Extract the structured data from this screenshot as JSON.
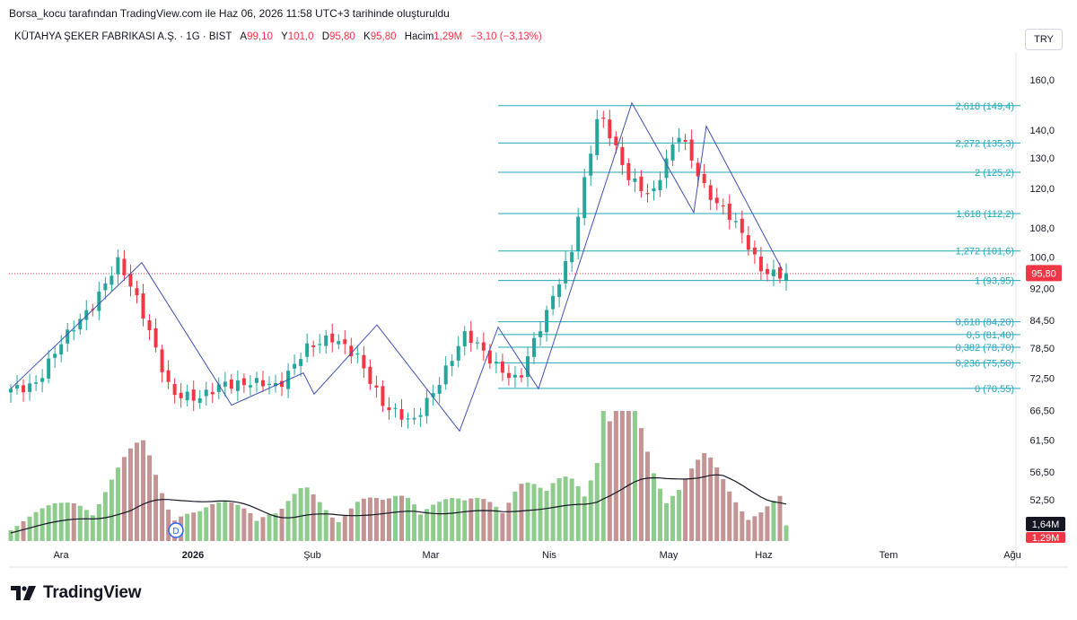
{
  "header": {
    "attribution": "Borsa_kocu tarafından TradingView.com ile Haz 06, 2026 11:58 UTC+3 tarihinde oluşturuldu"
  },
  "legend": {
    "symbol": "KÜTAHYA ŞEKER FABRIKASI A.Ş. · 1G · BIST",
    "open_label": "A",
    "open": "99,10",
    "high_label": "Y",
    "high": "101,0",
    "low_label": "D",
    "low": "95,80",
    "close_label": "K",
    "close": "95,80",
    "volume_label": "Hacim",
    "volume": "1,29M",
    "change": "−3,10 (−3,13%)"
  },
  "currency": "TRY",
  "brand": {
    "name": "TradingView"
  },
  "colors": {
    "up": "#26a69a",
    "down": "#f23645",
    "fib": "#22a7b8",
    "zigzag": "#3f51b5",
    "vol_up": "#8ecc8e",
    "vol_down": "#c49494"
  },
  "chart_data": {
    "type": "candlestick",
    "price_axis": {
      "scale": "log",
      "ticks": [
        "160,0",
        "140,0",
        "130,0",
        "120,0",
        "108,0",
        "100,0",
        "92,00",
        "84,50",
        "78,50",
        "72,50",
        "66,50",
        "61,50",
        "56,50",
        "52,50"
      ],
      "tick_values": [
        160,
        140,
        130,
        120,
        108,
        100,
        92,
        84.5,
        78.5,
        72.5,
        66.5,
        61.5,
        56.5,
        52.5
      ]
    },
    "time_axis": {
      "labels": [
        "Ara",
        "2026",
        "Şub",
        "Mar",
        "Nis",
        "May",
        "Haz",
        "Tem",
        "Ağu"
      ]
    },
    "last_price": {
      "label": "95,80",
      "value": 95.8
    },
    "volume": {
      "ma_label": "1,64M",
      "last_label": "1,29M"
    },
    "fib_levels": [
      {
        "label": "2,618 (149,4)",
        "value": 149.4
      },
      {
        "label": "2,272 (135,3)",
        "value": 135.3
      },
      {
        "label": "2 (125,2)",
        "value": 125.2
      },
      {
        "label": "1,618 (112,2)",
        "value": 112.2
      },
      {
        "label": "1,272 (101,6)",
        "value": 101.6
      },
      {
        "label": "1 (93,95)",
        "value": 93.95
      },
      {
        "label": "0,618 (84,20)",
        "value": 84.2
      },
      {
        "label": "0,5 (81,40)",
        "value": 81.4
      },
      {
        "label": "0,382 (78,70)",
        "value": 78.7
      },
      {
        "label": "0,236 (75,50)",
        "value": 75.5
      },
      {
        "label": "0 (70,55)",
        "value": 70.55
      }
    ],
    "zigzag": [
      70.5,
      98.5,
      67.5,
      73.5,
      69.5,
      83.5,
      63,
      83,
      70.5,
      150.5,
      112.5,
      141.5,
      96.5
    ],
    "key_closes": [
      70.5,
      72,
      80,
      88,
      98.5,
      85,
      70,
      68,
      72,
      71.5,
      70.5,
      79,
      80,
      77,
      67,
      64,
      72,
      81,
      76,
      72,
      85,
      103,
      146,
      125,
      118,
      138,
      120,
      110,
      97,
      95.8
    ],
    "candle_count": 124,
    "volume_relative": [
      0.15,
      0.2,
      0.25,
      0.35,
      0.5,
      0.65,
      0.3,
      0.2,
      0.25,
      0.3,
      0.2,
      0.35,
      0.25,
      0.3,
      0.25,
      0.4,
      0.3,
      0.25,
      0.35,
      0.45,
      0.3,
      0.55,
      0.7,
      1.0,
      0.6,
      0.45,
      0.55,
      0.35,
      0.25,
      0.3
    ]
  }
}
